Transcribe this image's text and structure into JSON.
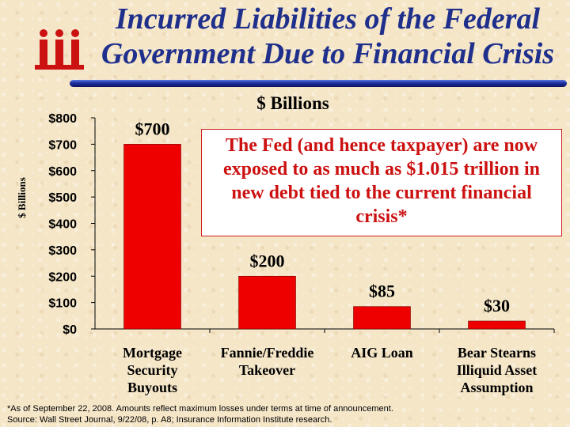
{
  "title": {
    "line1": "Incurred Liabilities of the Federal",
    "line2": "Government Due to Financial Crisis"
  },
  "units_heading": "$ Billions",
  "callout": "The Fed (and hence taxpayer) are now exposed to as much as $1.015 trillion in new debt tied to the current financial crisis*",
  "footnote": {
    "line1": "*As of September 22, 2008.  Amounts reflect maximum losses under terms at time of announcement.",
    "line2": "Source: Wall Street Journal,  9/22/08, p. A8; Insurance Information Institute research."
  },
  "colors": {
    "bar": "#ee0000",
    "title": "#1f2f8c",
    "callout_text": "#cc1111",
    "logo": "#cc1111"
  },
  "logo_icon": "iii-logo",
  "chart_data": {
    "type": "bar",
    "ylabel": "$ Billions",
    "ylim": [
      0,
      800
    ],
    "yticks": [
      0,
      100,
      200,
      300,
      400,
      500,
      600,
      700,
      800
    ],
    "ytick_labels": [
      "$0",
      "$100",
      "$200",
      "$300",
      "$400",
      "$500",
      "$600",
      "$700",
      "$800"
    ],
    "categories": [
      [
        "Mortgage",
        "Security",
        "Buyouts"
      ],
      [
        "Fannie/Freddie",
        "Takeover"
      ],
      [
        "AIG Loan"
      ],
      [
        "Bear Stearns",
        "Illiquid Asset",
        "Assumption"
      ]
    ],
    "values": [
      700,
      200,
      85,
      30
    ],
    "data_labels": [
      "$700",
      "$200",
      "$85",
      "$30"
    ],
    "grid": false,
    "legend": "none"
  }
}
